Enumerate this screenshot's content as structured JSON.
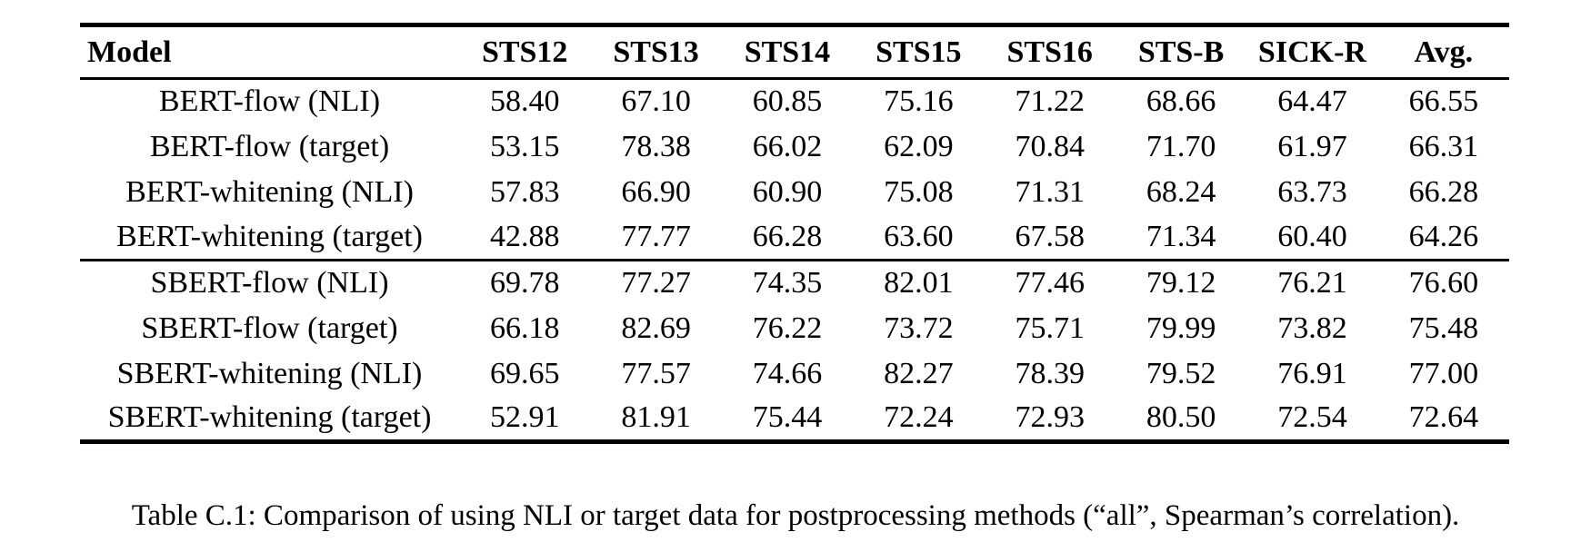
{
  "table": {
    "columns": [
      "Model",
      "STS12",
      "STS13",
      "STS14",
      "STS15",
      "STS16",
      "STS-B",
      "SICK-R",
      "Avg."
    ],
    "groups": [
      {
        "rows": [
          {
            "model": "BERT-flow (NLI)",
            "values": [
              "58.40",
              "67.10",
              "60.85",
              "75.16",
              "71.22",
              "68.66",
              "64.47",
              "66.55"
            ]
          },
          {
            "model": "BERT-flow (target)",
            "values": [
              "53.15",
              "78.38",
              "66.02",
              "62.09",
              "70.84",
              "71.70",
              "61.97",
              "66.31"
            ]
          },
          {
            "model": "BERT-whitening (NLI)",
            "values": [
              "57.83",
              "66.90",
              "60.90",
              "75.08",
              "71.31",
              "68.24",
              "63.73",
              "66.28"
            ]
          },
          {
            "model": "BERT-whitening (target)",
            "values": [
              "42.88",
              "77.77",
              "66.28",
              "63.60",
              "67.58",
              "71.34",
              "60.40",
              "64.26"
            ]
          }
        ]
      },
      {
        "rows": [
          {
            "model": "SBERT-flow (NLI)",
            "values": [
              "69.78",
              "77.27",
              "74.35",
              "82.01",
              "77.46",
              "79.12",
              "76.21",
              "76.60"
            ]
          },
          {
            "model": "SBERT-flow (target)",
            "values": [
              "66.18",
              "82.69",
              "76.22",
              "73.72",
              "75.71",
              "79.99",
              "73.82",
              "75.48"
            ]
          },
          {
            "model": "SBERT-whitening (NLI)",
            "values": [
              "69.65",
              "77.57",
              "74.66",
              "82.27",
              "78.39",
              "79.52",
              "76.91",
              "77.00"
            ]
          },
          {
            "model": "SBERT-whitening (target)",
            "values": [
              "52.91",
              "81.91",
              "75.44",
              "72.24",
              "72.93",
              "80.50",
              "72.54",
              "72.64"
            ]
          }
        ]
      }
    ]
  },
  "caption": {
    "text": "Table C.1: Comparison of using NLI or target data for postprocessing methods (“all”, Spearman’s correlation)."
  },
  "colors": {
    "text": "#000000",
    "background": "#ffffff",
    "rule": "#000000"
  }
}
